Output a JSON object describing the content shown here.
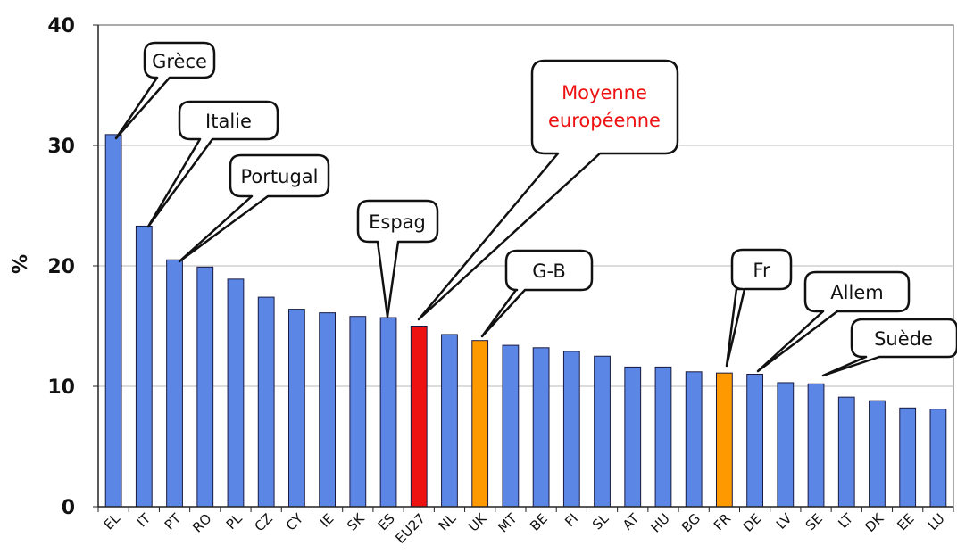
{
  "chart_data": {
    "type": "bar",
    "title": "",
    "xlabel": "",
    "ylabel": "%",
    "ylim": [
      0,
      40
    ],
    "yticks": [
      "0",
      "10",
      "20",
      "30",
      "40"
    ],
    "grid": true,
    "categories": [
      "EL",
      "IT",
      "PT",
      "RO",
      "PL",
      "CZ",
      "CY",
      "IE",
      "SK",
      "ES",
      "EU27",
      "NL",
      "UK",
      "MT",
      "BE",
      "FI",
      "SL",
      "AT",
      "HU",
      "BG",
      "FR",
      "DE",
      "LV",
      "SE",
      "LT",
      "DK",
      "EE",
      "LU"
    ],
    "values": [
      30.9,
      23.3,
      20.5,
      19.9,
      18.9,
      17.4,
      16.4,
      16.1,
      15.8,
      15.7,
      15.0,
      14.3,
      13.8,
      13.4,
      13.2,
      12.9,
      12.5,
      11.6,
      11.6,
      11.2,
      11.1,
      11.0,
      10.3,
      10.2,
      9.1,
      8.8,
      8.2,
      8.1
    ],
    "colors": {
      "default": "#5b86e5",
      "highlight_red": "#ee1111",
      "highlight_orange": "#ff9900",
      "grid": "#b8b8b8",
      "callout_red_text": "#ee1111"
    },
    "highlight": {
      "EU27": "highlight_red",
      "UK": "highlight_orange",
      "FR": "highlight_orange"
    },
    "annotations": [
      {
        "id": "greece",
        "text": "Grèce",
        "target": "EL",
        "color": "default"
      },
      {
        "id": "italie",
        "text": "Italie",
        "target": "IT",
        "color": "default"
      },
      {
        "id": "portugal",
        "text": "Portugal",
        "target": "PT",
        "color": "default"
      },
      {
        "id": "espag",
        "text": "Espag",
        "target": "ES",
        "color": "default"
      },
      {
        "id": "moyenne",
        "text": "Moyenne européenne",
        "line1": "Moyenne",
        "line2": "européenne",
        "target": "EU27",
        "color": "red"
      },
      {
        "id": "gb",
        "text": "G-B",
        "target": "UK",
        "color": "default"
      },
      {
        "id": "fr",
        "text": "Fr",
        "target": "FR",
        "color": "default"
      },
      {
        "id": "allem",
        "text": "Allem",
        "target": "DE",
        "color": "default"
      },
      {
        "id": "suede",
        "text": "Suède",
        "target": "SE",
        "color": "default"
      }
    ]
  }
}
